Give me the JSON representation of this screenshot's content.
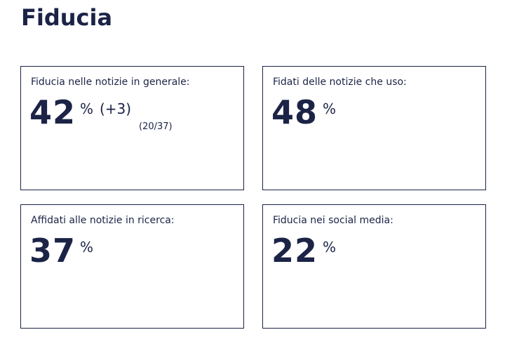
{
  "page": {
    "title": "Fiducia"
  },
  "cards": [
    {
      "label": "Fiducia nelle notizie in generale:",
      "value": "42",
      "unit": "%",
      "change": "(+3)",
      "rank": "(20/37)"
    },
    {
      "label": "Fidati delle notizie che uso:",
      "value": "48",
      "unit": "%"
    },
    {
      "label": "Affidati alle notizie in ricerca:",
      "value": "37",
      "unit": "%"
    },
    {
      "label": "Fiducia nei social media:",
      "value": "22",
      "unit": "%"
    }
  ],
  "colors": {
    "text": "#1b2346",
    "border": "#1b2346",
    "background": "#ffffff"
  }
}
